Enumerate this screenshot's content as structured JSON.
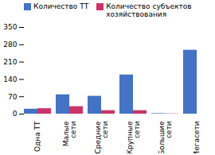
{
  "chart_data": {
    "type": "bar",
    "categories": [
      "Одна ТТ",
      "Малые\nсети",
      "Средние\nсети",
      "Крупные\nсети",
      "Большие\nсети",
      "Мегасети"
    ],
    "series": [
      {
        "name": "Количество ТТ",
        "color": "#4472C4",
        "values": [
          20,
          78,
          72,
          158,
          2,
          258
        ]
      },
      {
        "name": "Количество субъектов\nхозяйствования",
        "color": "#CC3366",
        "values": [
          22,
          30,
          14,
          14,
          1,
          0
        ]
      }
    ],
    "ylim": [
      0,
      350
    ],
    "yticks": [
      0,
      70,
      140,
      210,
      280,
      350
    ],
    "legend": "upper left"
  }
}
